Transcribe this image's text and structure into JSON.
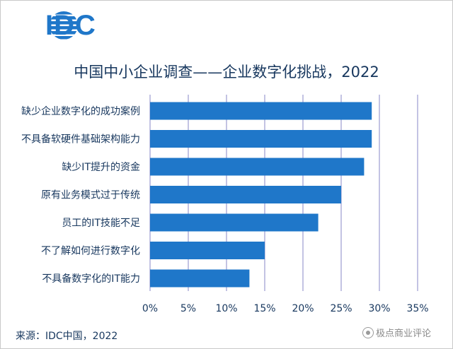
{
  "header": {
    "logo_text": "IDC",
    "title": "中国中小企业调查——企业数字化挑战，2022"
  },
  "footer": {
    "source": "来源：IDC中国，2022",
    "watermark": "极点商业评论",
    "watermark_icon": "circle-logo-icon"
  },
  "colors": {
    "bar": "#1f77c9",
    "grid": "#9b9bd0",
    "text": "#17375e",
    "logo": "#1f77c9"
  },
  "chart_data": {
    "type": "bar",
    "orientation": "horizontal",
    "title": "中国中小企业调查——企业数字化挑战，2022",
    "categories": [
      "缺少企业数字化的成功案例",
      "不具备软硬件基础架构能力",
      "缺少IT提升的资金",
      "原有业务模式过于传统",
      "员工的IT技能不足",
      "不了解如何进行数字化",
      "不具备数字化的IT能力"
    ],
    "values": [
      29,
      29,
      28,
      25,
      22,
      15,
      13
    ],
    "xlim": [
      0,
      35
    ],
    "xticks": [
      0,
      5,
      10,
      15,
      20,
      25,
      30,
      35
    ],
    "xtick_labels": [
      "0%",
      "5%",
      "10%",
      "15%",
      "20%",
      "25%",
      "30%",
      "35%"
    ],
    "grid": true,
    "xlabel": "",
    "ylabel": ""
  }
}
